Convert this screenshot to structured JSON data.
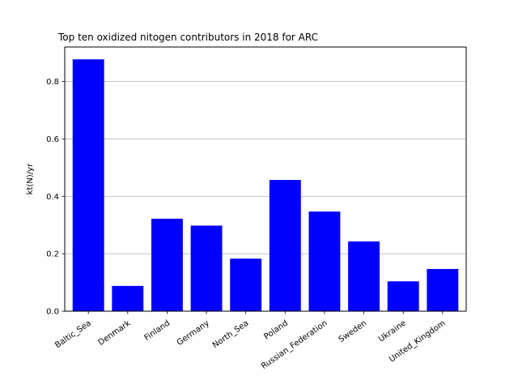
{
  "chart_data": {
    "type": "bar",
    "title": "Top ten oxidized nitogen contributors in 2018 for ARC",
    "xlabel": "",
    "ylabel": "kt(N)/yr",
    "categories": [
      "Baltic_Sea",
      "Denmark",
      "Finland",
      "Germany",
      "North_Sea",
      "Poland",
      "Russian_Federation",
      "Sweden",
      "Ukraine",
      "United_Kingdom"
    ],
    "values": [
      0.877,
      0.088,
      0.322,
      0.298,
      0.183,
      0.457,
      0.347,
      0.243,
      0.104,
      0.147
    ],
    "ylim": [
      0,
      0.92
    ],
    "yticks": [
      0.0,
      0.2,
      0.4,
      0.6,
      0.8
    ],
    "ytick_labels": [
      "0.0",
      "0.2",
      "0.4",
      "0.6",
      "0.8"
    ],
    "grid": {
      "y": true,
      "x": false
    },
    "bar_color": "#0000ff",
    "grid_color": "#b0b0b0"
  }
}
